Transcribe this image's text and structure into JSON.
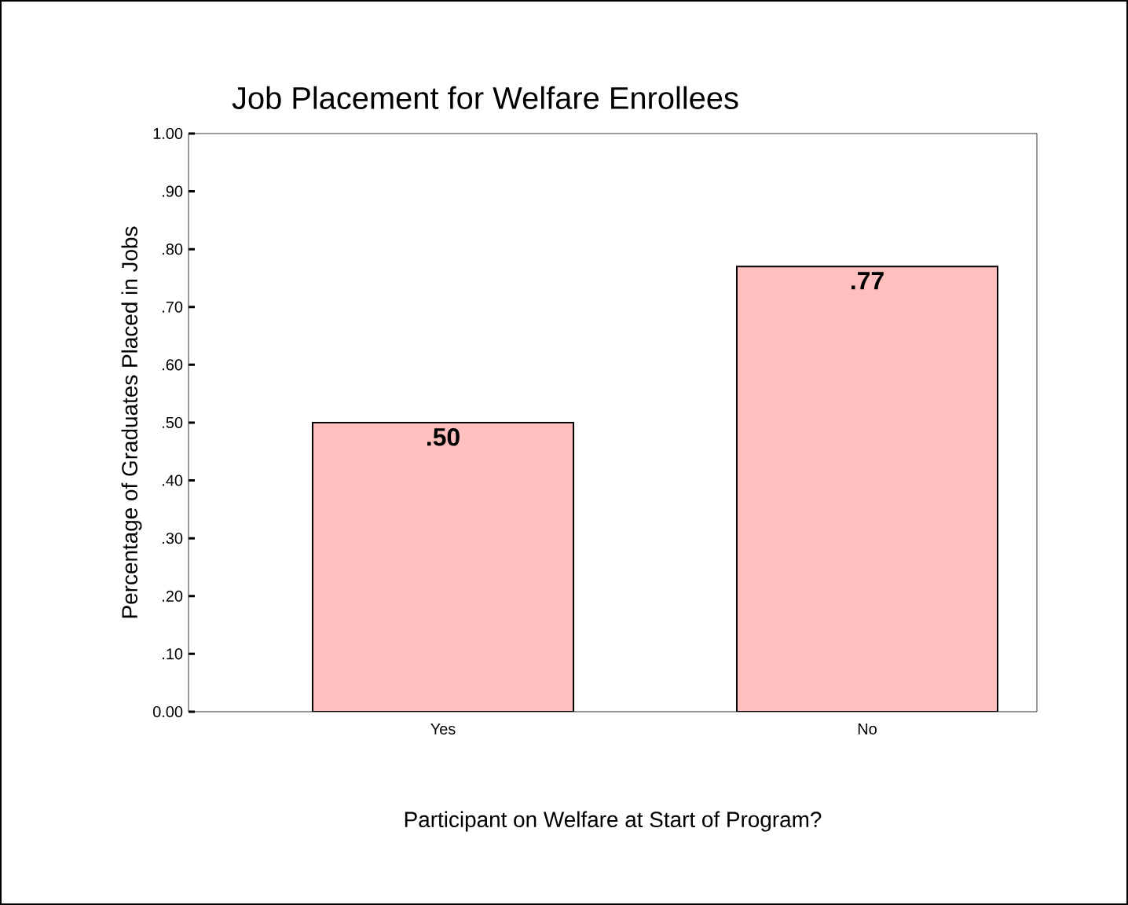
{
  "chart_data": {
    "type": "bar",
    "title": "Job Placement for Welfare Enrollees",
    "xlabel": "Participant on Welfare at Start of Program?",
    "ylabel": "Percentage of Graduates Placed in Jobs",
    "categories": [
      "Yes",
      "No"
    ],
    "values": [
      0.5,
      0.77
    ],
    "value_labels": [
      ".50",
      ".77"
    ],
    "color": "#ffbfbf",
    "ylim": [
      0,
      1
    ],
    "yticks": [
      {
        "value": 0,
        "label": "0.00"
      },
      {
        "value": 0.1,
        "label": ".10"
      },
      {
        "value": 0.2,
        "label": ".20"
      },
      {
        "value": 0.3,
        "label": ".30"
      },
      {
        "value": 0.4,
        "label": ".40"
      },
      {
        "value": 0.5,
        "label": ".50"
      },
      {
        "value": 0.6,
        "label": ".60"
      },
      {
        "value": 0.7,
        "label": ".70"
      },
      {
        "value": 0.8,
        "label": ".80"
      },
      {
        "value": 0.9,
        "label": ".90"
      },
      {
        "value": 1,
        "label": "1.00"
      }
    ],
    "grid": false
  }
}
